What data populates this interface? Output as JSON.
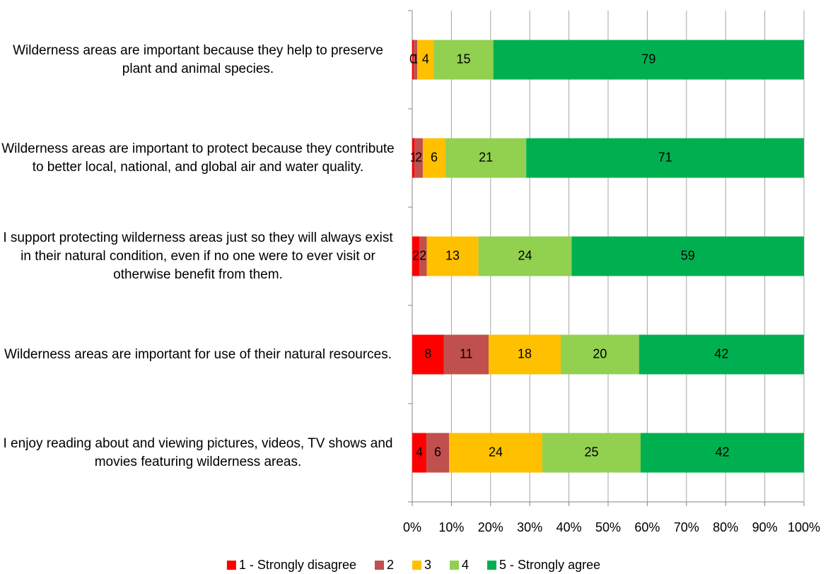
{
  "chart_data": {
    "type": "stacked-bar-100",
    "categories": [
      "Wilderness areas are important because they help to preserve plant and animal species.",
      "Wilderness areas are important to protect because they contribute to better local, national, and global air and water quality.",
      "I support protecting wilderness areas just so they will always exist in their natural condition, even if no one were to ever visit or otherwise benefit from them.",
      "Wilderness areas are important for use of their natural resources.",
      "I enjoy reading about and viewing pictures, videos, TV shows and movies featuring wilderness areas."
    ],
    "series": [
      {
        "name": "1 - Strongly disagree",
        "color": "#ff0000",
        "values": [
          0.4,
          0.6,
          1.8,
          8.1,
          3.6
        ],
        "value_labels": [
          "0",
          "1",
          "2",
          "8",
          "4"
        ]
      },
      {
        "name": "2",
        "color": "#c0504d",
        "values": [
          0.9,
          2.1,
          1.9,
          11.4,
          5.8
        ],
        "value_labels": [
          "1",
          "2",
          "2",
          "11",
          "6"
        ]
      },
      {
        "name": "3",
        "color": "#ffc000",
        "values": [
          4.2,
          5.8,
          13.2,
          18.4,
          23.8
        ],
        "value_labels": [
          "4",
          "6",
          "13",
          "18",
          "24"
        ]
      },
      {
        "name": "4",
        "color": "#92d050",
        "values": [
          15.2,
          20.6,
          23.8,
          20.0,
          25.1
        ],
        "value_labels": [
          "15",
          "21",
          "24",
          "20",
          "25"
        ]
      },
      {
        "name": "5 - Strongly agree",
        "color": "#00b050",
        "values": [
          79.3,
          70.9,
          59.3,
          42.1,
          41.7
        ],
        "value_labels": [
          "79",
          "71",
          "59",
          "42",
          "42"
        ]
      }
    ],
    "xlim": [
      0,
      100
    ],
    "xticks": [
      {
        "value": 0,
        "label": "0%"
      },
      {
        "value": 10,
        "label": "10%"
      },
      {
        "value": 20,
        "label": "20%"
      },
      {
        "value": 30,
        "label": "30%"
      },
      {
        "value": 40,
        "label": "40%"
      },
      {
        "value": 50,
        "label": "50%"
      },
      {
        "value": 60,
        "label": "60%"
      },
      {
        "value": 70,
        "label": "70%"
      },
      {
        "value": 80,
        "label": "80%"
      },
      {
        "value": 90,
        "label": "90%"
      },
      {
        "value": 100,
        "label": "100%"
      }
    ],
    "grid": true,
    "legend": "bottom"
  }
}
